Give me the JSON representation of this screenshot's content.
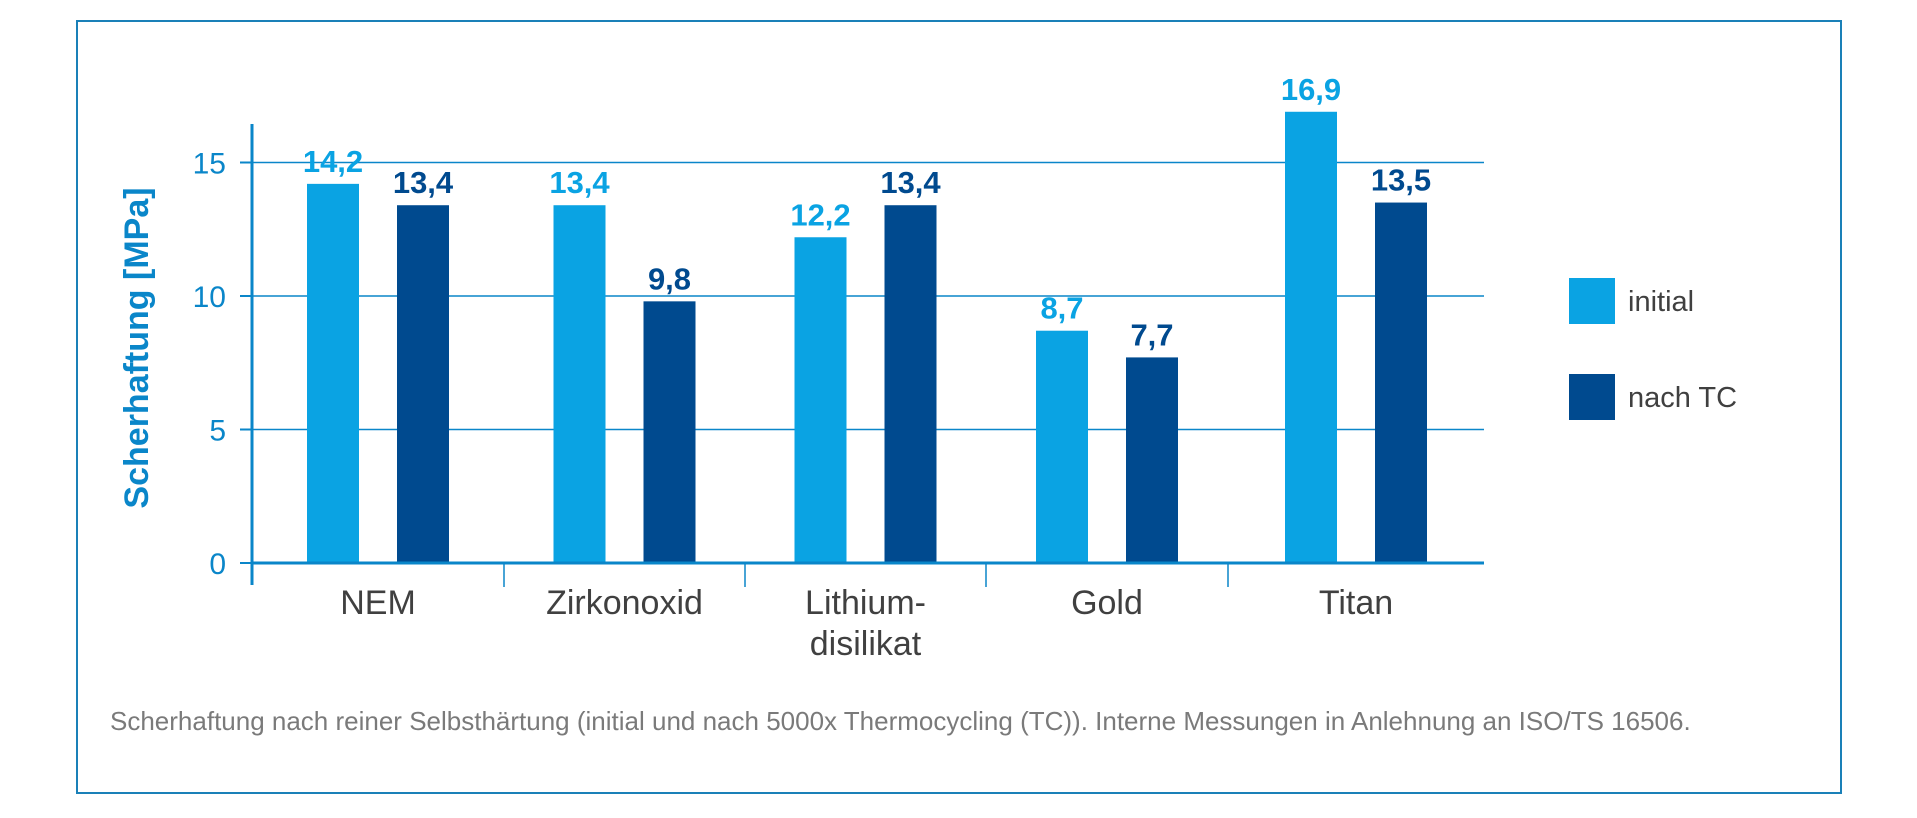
{
  "chart_data": {
    "type": "bar",
    "categories": [
      "NEM",
      "Zirkonoxid",
      "Lithium-\ndisilikat",
      "Gold",
      "Titan"
    ],
    "series": [
      {
        "name": "initial",
        "values": [
          14.2,
          13.4,
          12.2,
          8.7,
          16.9
        ],
        "labels": [
          "14,2",
          "13,4",
          "12,2",
          "8,7",
          "16,9"
        ],
        "color": "#0aa3e3"
      },
      {
        "name": "nach TC",
        "values": [
          13.4,
          9.8,
          13.4,
          7.7,
          13.5
        ],
        "labels": [
          "13,4",
          "9,8",
          "13,4",
          "7,7",
          "13,5"
        ],
        "color": "#004a8f"
      }
    ],
    "ylabel": "Scherhaftung [MPa]",
    "xlabel": "",
    "yticks": [
      0,
      5,
      10,
      15
    ],
    "ylim": [
      0,
      17
    ],
    "grid": true,
    "legend_position": "right"
  },
  "caption": "Scherhaftung nach reiner Selbsthärtung (initial und nach 5000x Thermocycling (TC)). Interne Messungen in Anlehnung an ISO/TS 16506.",
  "colors": {
    "frame": "#1a80b8",
    "axis": "#0a86c9",
    "grid": "#0a86c9",
    "text": "#404040",
    "caption": "#7a7a7a"
  }
}
